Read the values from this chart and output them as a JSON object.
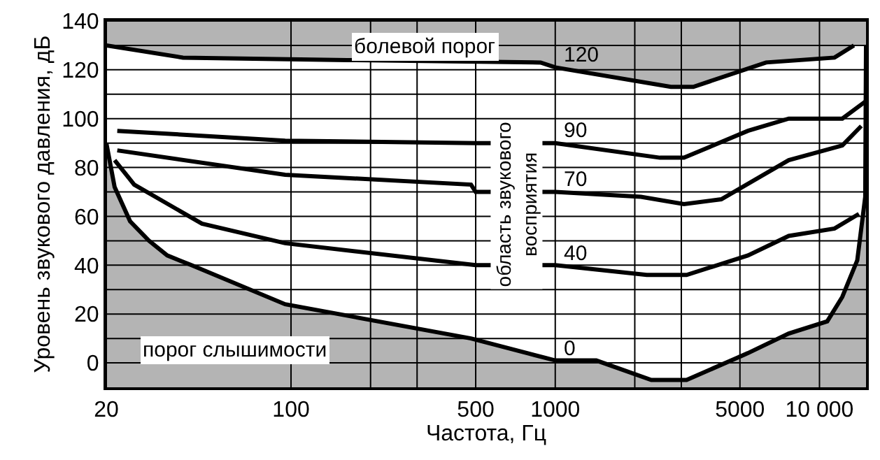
{
  "chart_data": {
    "type": "line",
    "xlabel": "Частота, Гц",
    "ylabel": "Уровень звукового давления, дБ",
    "log": "x",
    "grid": true,
    "legend": false,
    "marker": "none",
    "line_style": "solid",
    "xlim": [
      20,
      15000
    ],
    "xticks": [
      20,
      100,
      {
        "value": 200,
        "label": null
      },
      {
        "value": 300,
        "label": null
      },
      500,
      1000,
      {
        "value": 2000,
        "label": null
      },
      {
        "value": 3000,
        "label": null
      },
      5000,
      {
        "value": 10000,
        "label": "10 000"
      }
    ],
    "ylim": [
      -10,
      140
    ],
    "yticks": [
      0,
      {
        "value": 10,
        "label": null
      },
      20,
      {
        "value": 30,
        "label": null
      },
      40,
      {
        "value": 50,
        "label": null
      },
      60,
      {
        "value": 70,
        "label": null
      },
      80,
      {
        "value": 90,
        "label": null
      },
      100,
      {
        "value": 110,
        "label": null
      },
      120,
      {
        "value": 130,
        "label": null
      },
      140
    ],
    "series": [
      {
        "name": "120",
        "color": "#000000",
        "x": [
          20,
          39,
          163,
          880,
          1000,
          2740,
          3330,
          6280,
          11400,
          13500
        ],
        "values": [
          130,
          125,
          124,
          123,
          121,
          113,
          113,
          123,
          125,
          130
        ]
      },
      {
        "name": "0",
        "color": "#000000",
        "x": [
          20,
          21.5,
          24.6,
          29,
          34,
          42,
          95,
          480,
          1000,
          1430,
          2310,
          3140,
          5360,
          7650,
          10700,
          12200,
          13900,
          14900,
          15000
        ],
        "values": [
          90,
          72,
          58,
          50,
          44,
          40,
          24,
          10,
          1,
          1,
          -7,
          -7,
          4,
          12,
          17,
          27,
          42,
          68,
          130
        ]
      },
      {
        "name": "90",
        "color": "#000000",
        "x": [
          22,
          95,
          500,
          1000,
          2490,
          3070,
          5360,
          7650,
          12200,
          14900
        ],
        "values": [
          95,
          91,
          90,
          90,
          84,
          84,
          95,
          100,
          100,
          107
        ]
      },
      {
        "name": "70",
        "color": "#000000",
        "x": [
          22,
          95,
          480,
          500,
          1000,
          2110,
          3070,
          4250,
          7650,
          12200,
          14400
        ],
        "values": [
          87,
          77,
          73,
          70,
          70,
          68,
          65,
          67,
          83,
          89,
          97
        ]
      },
      {
        "name": "40",
        "color": "#000000",
        "x": [
          21.5,
          25.5,
          33,
          46,
          95,
          500,
          1000,
          2220,
          3140,
          5360,
          7650,
          11400,
          14100
        ],
        "values": [
          83,
          73,
          66,
          57,
          49,
          40,
          40,
          36,
          36,
          44,
          52,
          55,
          61
        ]
      }
    ],
    "annotations": [
      "болевой порог",
      "порог слышимости",
      "область звукового\nвосприятия"
    ]
  }
}
